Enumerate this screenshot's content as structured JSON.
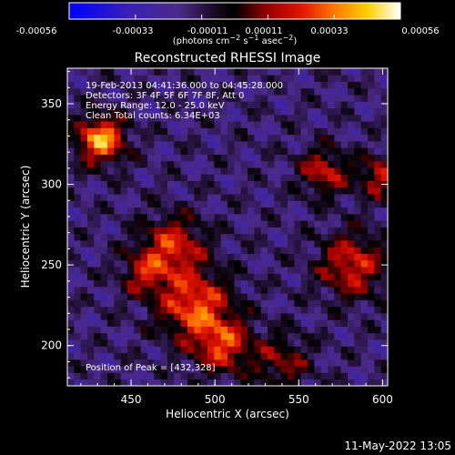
{
  "colorbar": {
    "ticks": [
      "-0.00056",
      "-0.00033",
      "-0.00011",
      "0.00011",
      "0.00033",
      "0.00056"
    ],
    "units_html": "(photons cm⁻² s⁻¹ asec⁻²)",
    "range": [
      -0.00056,
      0.00056
    ]
  },
  "footer": {
    "timestamp": "11-May-2022 13:05"
  },
  "colors": {
    "background": "#000000",
    "axes": "#ffffff"
  },
  "chart_data": {
    "type": "heatmap",
    "title": "Reconstructed RHESSI Image",
    "xlabel": "Heliocentric X (arcsec)",
    "ylabel": "Heliocentric Y (arcsec)",
    "xlim": [
      412,
      603
    ],
    "ylim": [
      175,
      372
    ],
    "xticks": [
      450,
      500,
      550,
      600
    ],
    "yticks": [
      200,
      250,
      300,
      350
    ],
    "colormap": "blue-purple-black-red-orange-yellow-white (IDL color table 'hessi')",
    "annotations": [
      "19-Feb-2013 04:41:36.000 to 04:45:28.000",
      "Detectors: 3F 4F 5F 6F 7F 8F, Att 0",
      "Energy Range: 12.0 - 25.0 keV",
      "Clean    Total counts: 6.34E+03"
    ],
    "peak_label": "Position of Peak = [432,328]",
    "peak": [
      432,
      328
    ],
    "grid_size": [
      48,
      48
    ],
    "bright_sources": [
      {
        "x": 432,
        "y": 328,
        "sigma": 10,
        "amp": 0.00056
      },
      {
        "x": 488,
        "y": 225,
        "sigma": 15,
        "amp": 0.00044
      },
      {
        "x": 475,
        "y": 262,
        "sigma": 13,
        "amp": 0.00036
      },
      {
        "x": 505,
        "y": 200,
        "sigma": 12,
        "amp": 0.00037
      },
      {
        "x": 582,
        "y": 250,
        "sigma": 14,
        "amp": 0.00036
      },
      {
        "x": 565,
        "y": 308,
        "sigma": 10,
        "amp": 0.00033
      },
      {
        "x": 598,
        "y": 305,
        "sigma": 9,
        "amp": 0.00032
      },
      {
        "x": 458,
        "y": 245,
        "sigma": 10,
        "amp": 0.00027
      },
      {
        "x": 540,
        "y": 190,
        "sigma": 12,
        "amp": 0.00024
      }
    ]
  }
}
